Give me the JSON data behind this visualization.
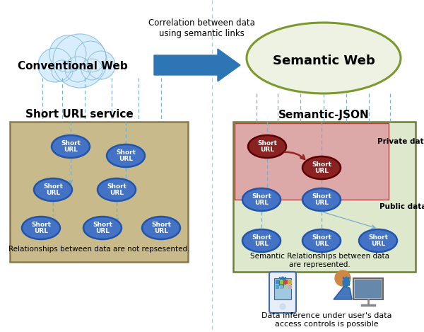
{
  "bg_color": "#ffffff",
  "arrow_color_blue": "#2E75B6",
  "arrow_text": "Correlation between data\nusing semantic links",
  "cloud_text": "Conventional Web",
  "sem_text": "Semantic Web",
  "sem_fill": "#EEF2E2",
  "sem_edge": "#7A9A2E",
  "left_label": "Short URL service",
  "right_label": "Semantic-JSON",
  "left_box_fill": "#C8BA8A",
  "left_box_edge": "#8B7A4A",
  "right_box_fill": "#DDE8CC",
  "right_box_edge": "#6B8030",
  "private_fill": "#DDA8A8",
  "private_edge": "#AA4444",
  "private_label": "Private data",
  "public_label": "Public data",
  "url_blue_fill": "#4472C4",
  "url_blue_edge": "#2255AA",
  "url_dark_fill": "#8B2222",
  "url_dark_edge": "#5A0000",
  "url_text": "Short\nURL",
  "dashed_color": "#7AAECC",
  "left_caption": "Relationships between data are not repsesented.",
  "right_caption": "Semantic Relationships between data\nare represented.",
  "bottom_caption": "Data inference under user's data\naccess controls is possible"
}
